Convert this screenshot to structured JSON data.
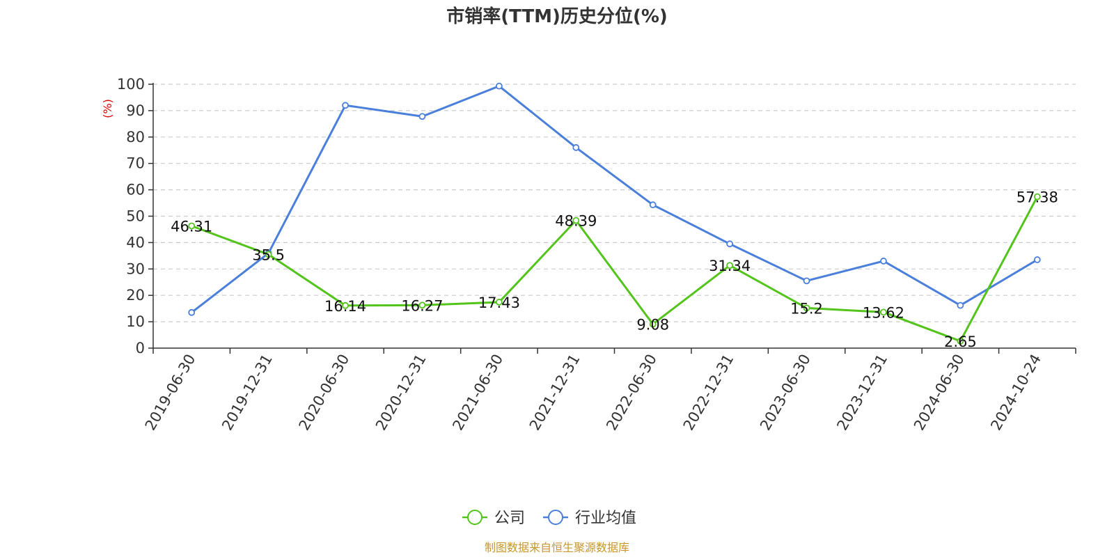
{
  "chart_data": {
    "type": "line",
    "title": "市销率(TTM)历史分位(%)",
    "ylabel": "(%)",
    "xlabel": "",
    "ylim": [
      0,
      100
    ],
    "yticks": [
      "0",
      "10",
      "20",
      "30",
      "40",
      "50",
      "60",
      "70",
      "80",
      "90",
      "100"
    ],
    "categories": [
      "2019-06-30",
      "2019-12-31",
      "2020-06-30",
      "2020-12-31",
      "2021-06-30",
      "2021-12-31",
      "2022-06-30",
      "2022-12-31",
      "2023-06-30",
      "2023-12-31",
      "2024-06-30",
      "2024-10-24"
    ],
    "grid": true,
    "legend_position": "bottom",
    "series": [
      {
        "name": "公司",
        "color": "#52c41a",
        "values": [
          46.31,
          35.5,
          16.14,
          16.27,
          17.43,
          48.39,
          9.08,
          31.34,
          15.2,
          13.62,
          2.65,
          57.38
        ],
        "labels": [
          "46.31",
          "35.5",
          "16.14",
          "16.27",
          "17.43",
          "48.39",
          "9.08",
          "31.34",
          "15.2",
          "13.62",
          "2.65",
          "57.38"
        ]
      },
      {
        "name": "行业均值",
        "color": "#4a7fdb",
        "values": [
          13.5,
          36.0,
          92.0,
          87.8,
          99.3,
          76.0,
          54.3,
          39.5,
          25.5,
          33.0,
          16.2,
          33.5
        ]
      }
    ],
    "source": "制图数据来自恒生聚源数据库"
  }
}
